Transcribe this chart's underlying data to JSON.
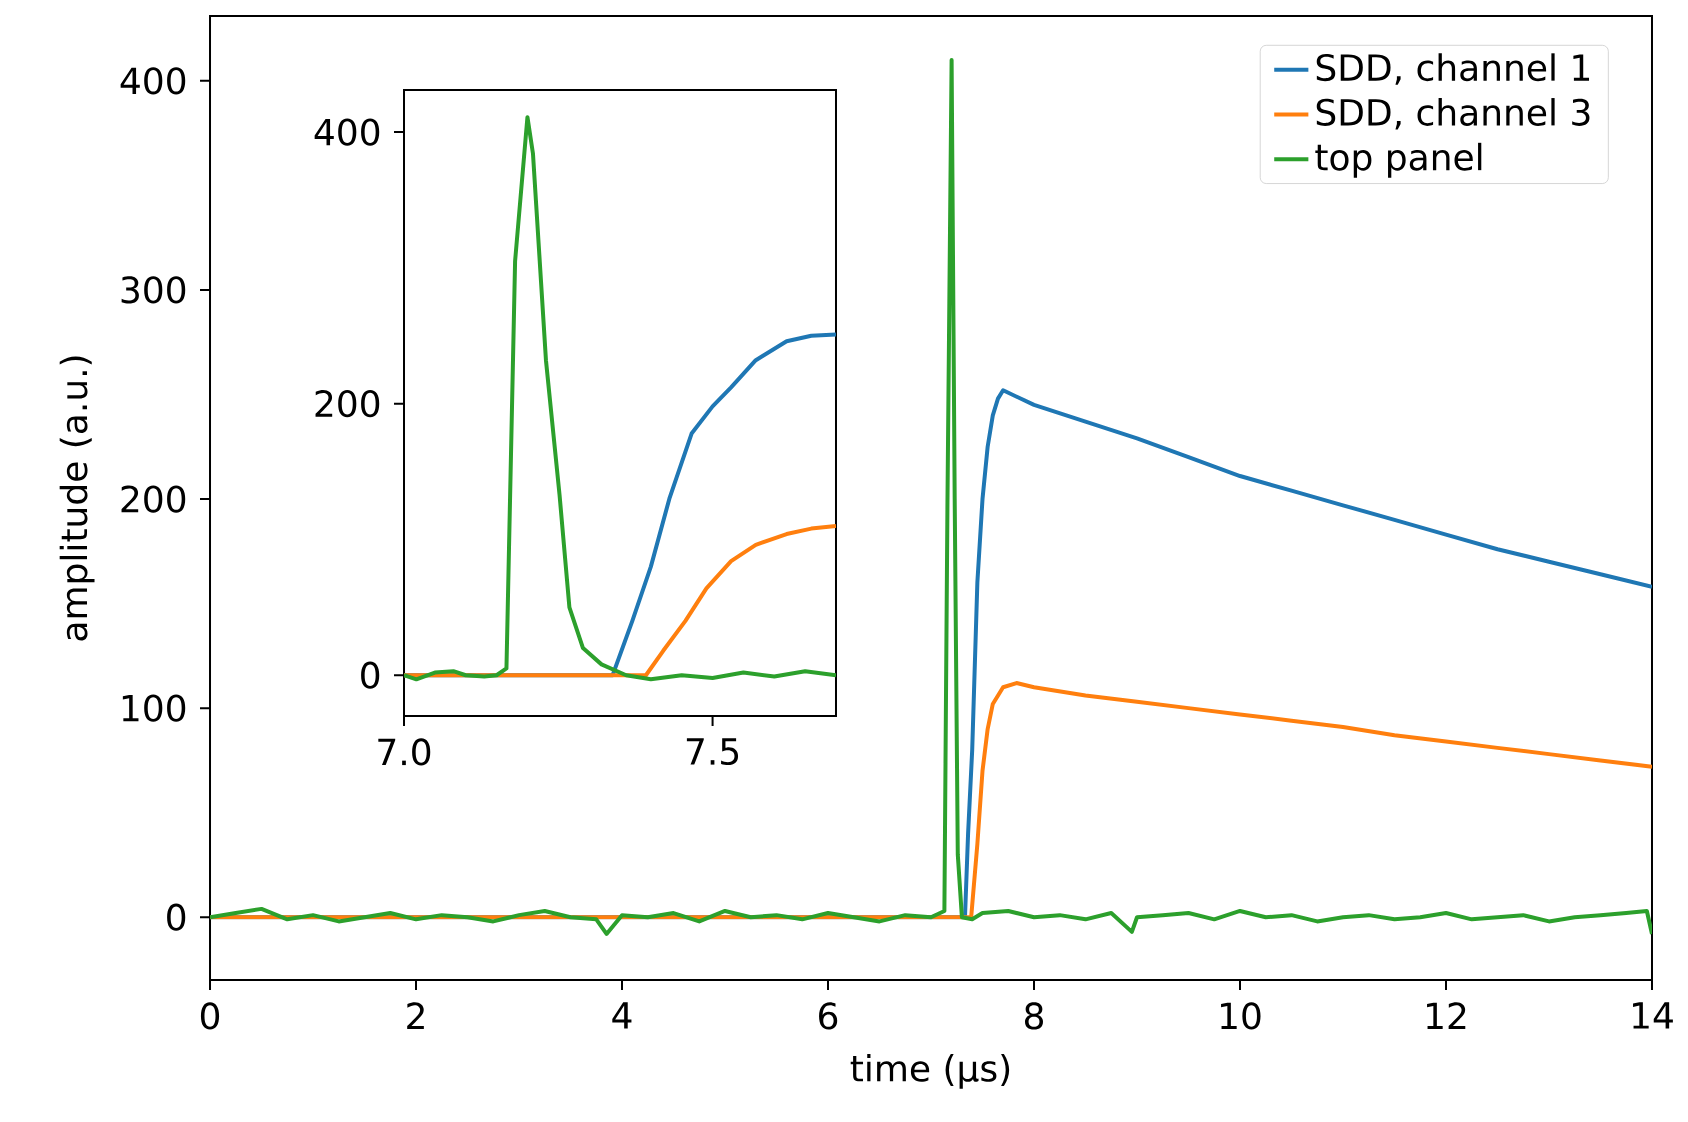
{
  "chart_data": [
    {
      "type": "line",
      "xlabel": "time (µs)",
      "ylabel": "amplitude (a.u.)",
      "xlim": [
        0,
        14
      ],
      "ylim": [
        -30,
        431
      ],
      "xticks": [
        0,
        2,
        4,
        6,
        8,
        10,
        12,
        14
      ],
      "yticks": [
        0,
        100,
        200,
        300,
        400
      ],
      "legend": "top right",
      "line_style": "solid",
      "series": [
        {
          "name": "SDD, channel 1",
          "color": "#1f77b4",
          "x": [
            0,
            7.33,
            7.36,
            7.4,
            7.45,
            7.5,
            7.55,
            7.6,
            7.65,
            7.7,
            8,
            8.5,
            9,
            9.5,
            10,
            10.5,
            11,
            11.5,
            12,
            12.5,
            13,
            13.5,
            14
          ],
          "values": [
            0,
            0,
            40,
            80,
            160,
            200,
            225,
            240,
            248,
            252,
            245,
            237,
            229,
            220,
            211,
            204,
            197,
            190,
            183,
            176,
            170,
            164,
            158
          ]
        },
        {
          "name": "SDD, channel 3",
          "color": "#ff7f0e",
          "x": [
            0,
            7.39,
            7.45,
            7.5,
            7.55,
            7.6,
            7.7,
            7.83,
            8,
            8.5,
            9,
            9.5,
            10,
            10.5,
            11,
            11.5,
            12,
            12.5,
            13,
            13.5,
            14
          ],
          "values": [
            0,
            0,
            35,
            70,
            90,
            102,
            110,
            112,
            110,
            106,
            103,
            100,
            97,
            94,
            91,
            87,
            84,
            81,
            78,
            75,
            72
          ]
        },
        {
          "name": "top panel",
          "color": "#2ca02c",
          "x": [
            0,
            0.25,
            0.5,
            0.75,
            1,
            1.25,
            1.5,
            1.75,
            2,
            2.25,
            2.5,
            2.75,
            3,
            3.25,
            3.5,
            3.75,
            3.85,
            4,
            4.25,
            4.5,
            4.75,
            5,
            5.25,
            5.5,
            5.75,
            6,
            6.25,
            6.5,
            6.75,
            7,
            7.13,
            7.16,
            7.2,
            7.23,
            7.26,
            7.3,
            7.4,
            7.5,
            7.75,
            8,
            8.25,
            8.5,
            8.75,
            8.95,
            9,
            9.25,
            9.5,
            9.75,
            10,
            10.25,
            10.5,
            10.75,
            11,
            11.25,
            11.5,
            11.75,
            12,
            12.25,
            12.5,
            12.75,
            13,
            13.25,
            13.5,
            13.75,
            13.95,
            14
          ],
          "values": [
            0,
            2,
            4,
            -1,
            1,
            -2,
            0,
            2,
            -1,
            1,
            0,
            -2,
            1,
            3,
            0,
            -1,
            -8,
            1,
            0,
            2,
            -2,
            3,
            0,
            1,
            -1,
            2,
            0,
            -2,
            1,
            0,
            3,
            200,
            410,
            200,
            30,
            0,
            -1,
            2,
            3,
            0,
            1,
            -1,
            2,
            -7,
            0,
            1,
            2,
            -1,
            3,
            0,
            1,
            -2,
            0,
            1,
            -1,
            0,
            2,
            -1,
            0,
            1,
            -2,
            0,
            1,
            2,
            3,
            -8
          ]
        }
      ]
    },
    {
      "type": "line",
      "xlim": [
        7.0,
        7.7
      ],
      "ylim": [
        -30,
        431
      ],
      "xticks": [
        {
          "value": 7.0,
          "label": "7.0"
        },
        {
          "value": 7.5,
          "label": "7.5"
        }
      ],
      "yticks": [
        0,
        200,
        400
      ],
      "line_style": "solid",
      "series": [
        {
          "color": "#1f77b4",
          "x": [
            7.0,
            7.338,
            7.37,
            7.4,
            7.43,
            7.466,
            7.5,
            7.53,
            7.57,
            7.62,
            7.66,
            7.7
          ],
          "values": [
            0,
            0,
            40,
            80,
            130,
            178,
            198,
            212,
            232,
            246,
            250,
            251
          ]
        },
        {
          "color": "#ff7f0e",
          "x": [
            7.0,
            7.392,
            7.42,
            7.456,
            7.49,
            7.53,
            7.57,
            7.62,
            7.66,
            7.7
          ],
          "values": [
            0,
            0,
            18,
            40,
            64,
            84,
            96,
            104,
            108,
            110
          ]
        },
        {
          "color": "#2ca02c",
          "x": [
            7.0,
            7.02,
            7.05,
            7.08,
            7.1,
            7.13,
            7.15,
            7.166,
            7.18,
            7.2,
            7.209,
            7.23,
            7.252,
            7.268,
            7.29,
            7.32,
            7.36,
            7.4,
            7.45,
            7.5,
            7.55,
            7.6,
            7.65,
            7.7
          ],
          "values": [
            0,
            -3,
            2,
            3,
            0,
            -1,
            0,
            5,
            305,
            411,
            384,
            232,
            133,
            50,
            20,
            8,
            0,
            -3,
            0,
            -2,
            2,
            -1,
            3,
            0
          ]
        }
      ]
    }
  ]
}
